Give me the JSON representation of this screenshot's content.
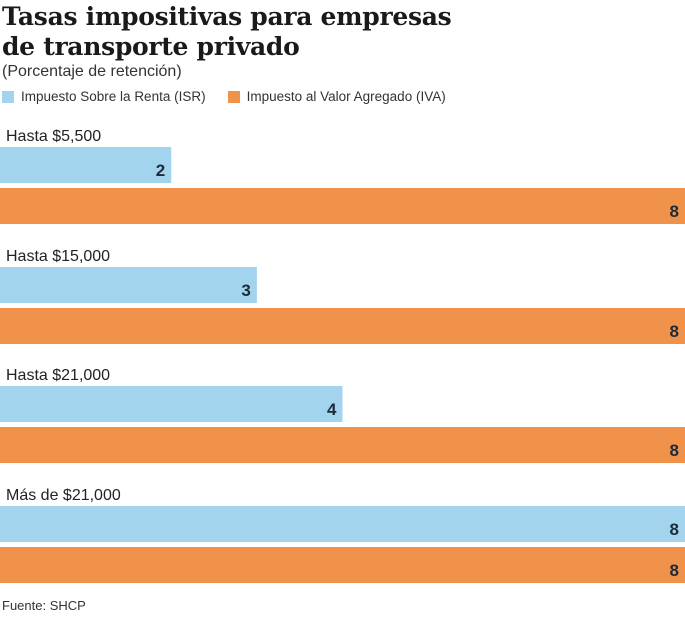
{
  "chart_data": {
    "type": "bar",
    "orientation": "horizontal",
    "title": "Tasas impositivas para empresas de transporte privado",
    "title_lines": [
      "Tasas impositivas para empresas",
      "de transporte privado"
    ],
    "subtitle": "(Porcentaje de retención)",
    "xlabel": "",
    "ylabel": "",
    "xlim": [
      0,
      8
    ],
    "grid": false,
    "legend_position": "top-left",
    "categories": [
      "Hasta $5,500",
      "Hasta $15,000",
      "Hasta $21,000",
      "Más de $21,000"
    ],
    "series": [
      {
        "name": "Impuesto Sobre la Renta (ISR)",
        "color": "#a3d4ee",
        "values": [
          2,
          3,
          4,
          8
        ]
      },
      {
        "name": "Impuesto al Valor Agregado (IVA)",
        "color": "#f0924a",
        "values": [
          8,
          8,
          8,
          8
        ]
      }
    ],
    "value_label_color": "#1c2a3a",
    "source": "Fuente: SHCP"
  }
}
